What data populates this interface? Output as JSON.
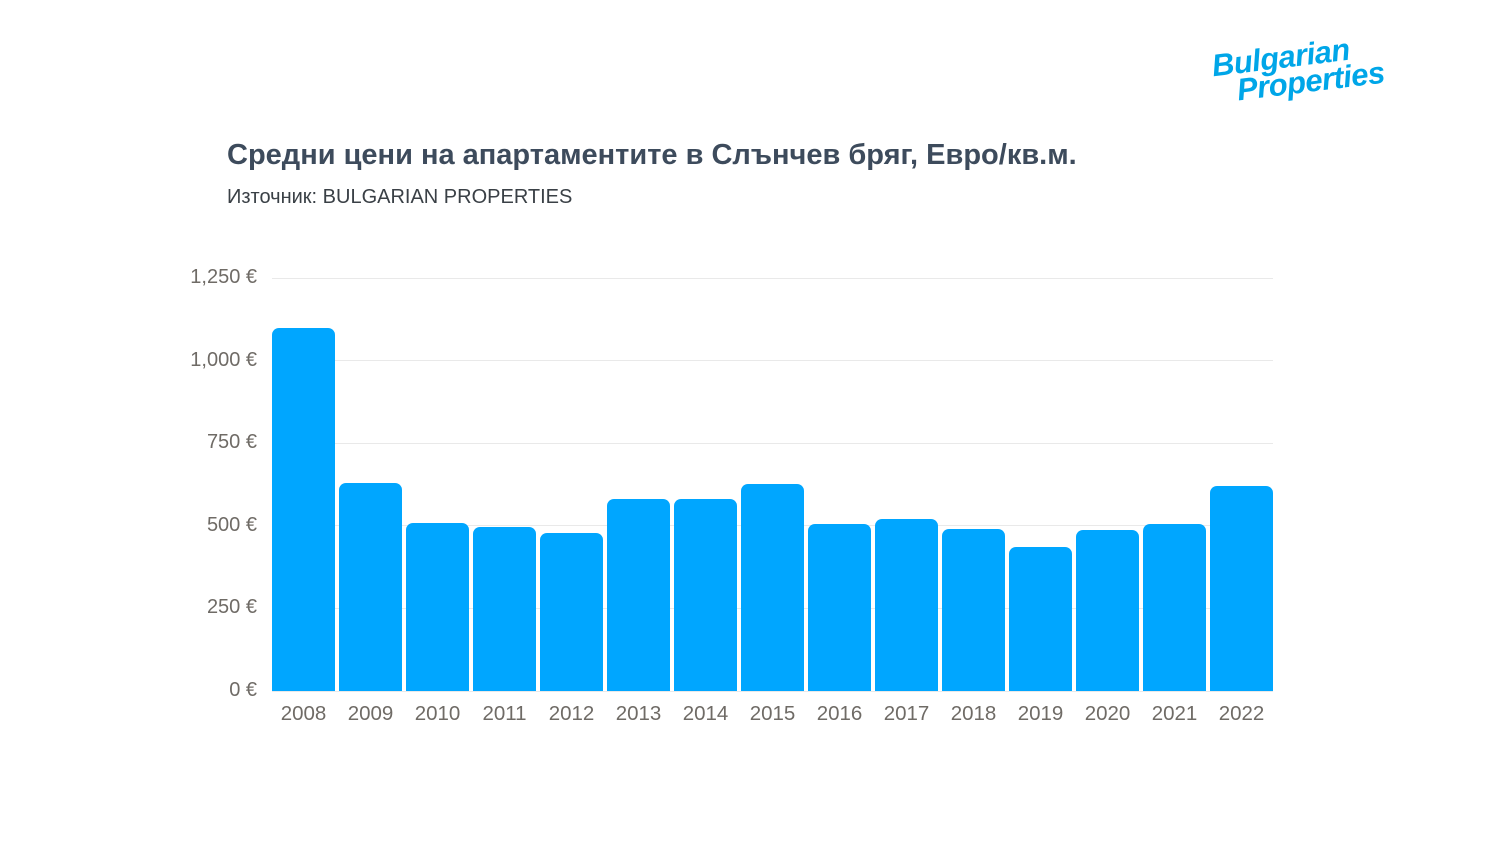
{
  "logo": {
    "line1": "Bulgarian",
    "line2": "Properties",
    "color": "#00a6e8"
  },
  "header": {
    "title": "Средни цени на апартаментите в Слънчев бряг, Евро/кв.м.",
    "source": "Източник: BULGARIAN PROPERTIES"
  },
  "chart_data": {
    "type": "bar",
    "title": "Средни цени на апартаментите в Слънчев бряг, Евро/кв.м.",
    "subtitle": "Източник: BULGARIAN PROPERTIES",
    "categories": [
      "2008",
      "2009",
      "2010",
      "2011",
      "2012",
      "2013",
      "2014",
      "2015",
      "2016",
      "2017",
      "2018",
      "2019",
      "2020",
      "2021",
      "2022"
    ],
    "values": [
      1100,
      630,
      508,
      495,
      477,
      580,
      582,
      628,
      505,
      520,
      490,
      435,
      488,
      506,
      620
    ],
    "xlabel": "",
    "ylabel": "",
    "ylim": [
      0,
      1250
    ],
    "yticks": [
      0,
      250,
      500,
      750,
      1000,
      1250
    ],
    "ytick_labels": [
      "0 €",
      "250 €",
      "500 €",
      "750 €",
      "1,000 €",
      "1,250 €"
    ],
    "unit": "€/кв.м.",
    "bar_color": "#00a6ff",
    "grid": true,
    "gridline_color": "#e9e9e9",
    "legend": "none"
  }
}
